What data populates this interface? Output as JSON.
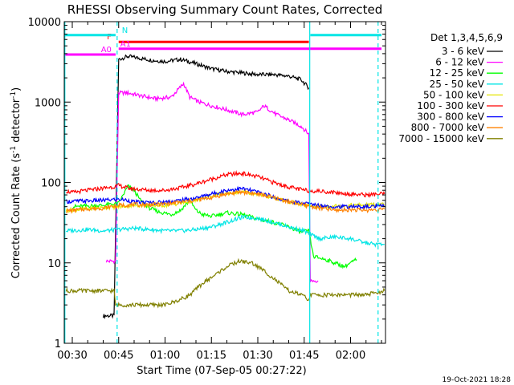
{
  "chart_data": {
    "type": "line",
    "title": "RHESSI Observing Summary Count Rates, Corrected",
    "xlabel": "Start Time (07-Sep-05 00:27:22)",
    "ylabel_main": "Corrected Count Rate (s",
    "ylabel_sup1": "-1",
    "ylabel_mid": " detector",
    "ylabel_sup2": "-1",
    "ylabel_end": ")",
    "yscale": "log",
    "ylim": [
      1,
      10000
    ],
    "xlim_min": [
      27.4,
      131.3
    ],
    "y_ticks": [
      {
        "v": 1,
        "label": "1"
      },
      {
        "v": 10,
        "label": "10"
      },
      {
        "v": 100,
        "label": "100"
      },
      {
        "v": 1000,
        "label": "1000"
      },
      {
        "v": 10000,
        "label": "10000"
      }
    ],
    "x_ticks": [
      {
        "v": 30,
        "label": "00:30"
      },
      {
        "v": 45,
        "label": "00:45"
      },
      {
        "v": 60,
        "label": "01:00"
      },
      {
        "v": 75,
        "label": "01:15"
      },
      {
        "v": 90,
        "label": "01:30"
      },
      {
        "v": 105,
        "label": "01:45"
      },
      {
        "v": 120,
        "label": "02:00"
      }
    ],
    "legend_title": "Det 1,3,4,5,6,9",
    "legend_position": "right",
    "series": [
      {
        "name": "3 - 6 keV",
        "color": "#000000",
        "x": [
          40,
          43.5,
          43.6,
          45,
          48,
          52,
          56,
          60,
          65,
          70,
          75,
          80,
          85,
          90,
          95,
          100,
          104,
          106.5
        ],
        "values": [
          2.2,
          2.2,
          3.5,
          3400,
          3700,
          3500,
          3300,
          3200,
          3400,
          3000,
          2600,
          2400,
          2300,
          2200,
          2200,
          2100,
          1900,
          1500
        ]
      },
      {
        "name": "6 - 12 keV",
        "color": "#ff00ff",
        "x": [
          41,
          43.5,
          44,
          45,
          48,
          52,
          57,
          62,
          66,
          68,
          71,
          75,
          80,
          85,
          90,
          92,
          96,
          100,
          104,
          106.5,
          107,
          109.5
        ],
        "values": [
          10.5,
          10.5,
          10.5,
          1300,
          1300,
          1200,
          1100,
          1150,
          1700,
          1150,
          1000,
          900,
          800,
          700,
          750,
          900,
          700,
          600,
          500,
          400,
          6,
          6
        ]
      },
      {
        "name": "12 - 25 keV",
        "color": "#00ff00",
        "x": [
          30,
          40,
          45,
          48,
          50,
          52,
          55,
          58,
          62,
          65,
          68,
          70,
          72,
          75,
          80,
          85,
          90,
          95,
          100,
          104,
          106.5,
          108,
          112,
          118,
          120,
          122
        ],
        "values": [
          50,
          52,
          55,
          90,
          80,
          60,
          48,
          43,
          40,
          45,
          60,
          45,
          40,
          38,
          42,
          40,
          35,
          32,
          28,
          24,
          25,
          12,
          11,
          9,
          10,
          11
        ]
      },
      {
        "name": "25 - 50 keV",
        "color": "#00e5e5",
        "x": [
          28,
          35,
          40,
          45,
          50,
          55,
          60,
          65,
          70,
          75,
          80,
          85,
          90,
          95,
          100,
          105,
          106.5,
          110,
          115,
          120,
          122,
          124,
          128,
          131
        ],
        "values": [
          25,
          26,
          25,
          26,
          27,
          26,
          25,
          25,
          26,
          28,
          32,
          37,
          36,
          32,
          28,
          25,
          23,
          20,
          21,
          20,
          19,
          18,
          17,
          17
        ]
      },
      {
        "name": "50 - 100 keV",
        "color": "#e5e500",
        "x": [
          28,
          35,
          45,
          50,
          55,
          60,
          65,
          70,
          75,
          80,
          85,
          90,
          95,
          100,
          105,
          110,
          120,
          131
        ],
        "values": [
          45,
          47,
          50,
          52,
          52,
          52,
          55,
          60,
          68,
          74,
          76,
          72,
          65,
          58,
          52,
          50,
          52,
          53
        ]
      },
      {
        "name": "100 - 300 keV",
        "color": "#ff0000",
        "x": [
          28,
          30,
          35,
          40,
          43,
          45,
          48,
          50,
          55,
          60,
          65,
          70,
          75,
          80,
          85,
          90,
          95,
          100,
          105,
          110,
          115,
          120,
          125,
          131
        ],
        "values": [
          78,
          75,
          80,
          85,
          88,
          92,
          85,
          83,
          80,
          80,
          86,
          96,
          110,
          125,
          130,
          118,
          100,
          88,
          80,
          78,
          75,
          72,
          70,
          72
        ]
      },
      {
        "name": "300 - 800 keV",
        "color": "#0000ff",
        "x": [
          28,
          35,
          40,
          45,
          48,
          50,
          55,
          60,
          65,
          70,
          75,
          80,
          85,
          90,
          95,
          100,
          105,
          110,
          115,
          120,
          125,
          131
        ],
        "values": [
          58,
          59,
          60,
          62,
          60,
          57,
          56,
          57,
          60,
          64,
          72,
          80,
          84,
          76,
          66,
          58,
          55,
          52,
          50,
          50,
          50,
          51
        ]
      },
      {
        "name": "800 - 7000 keV",
        "color": "#ff8000",
        "x": [
          28,
          30,
          35,
          40,
          45,
          50,
          55,
          60,
          65,
          70,
          75,
          80,
          85,
          90,
          95,
          100,
          105,
          110,
          115,
          120,
          125,
          131
        ],
        "values": [
          44,
          45,
          47,
          48,
          52,
          53,
          53,
          54,
          57,
          60,
          65,
          72,
          76,
          72,
          65,
          58,
          52,
          48,
          45,
          46,
          45,
          47
        ]
      },
      {
        "name": "7000 - 15000 keV",
        "color": "#808000",
        "x": [
          28,
          40,
          43.5,
          44,
          46,
          50,
          55,
          60,
          65,
          68,
          72,
          76,
          80,
          84,
          88,
          92,
          96,
          100,
          104,
          106.5,
          107,
          110,
          115,
          120,
          125,
          131
        ],
        "values": [
          4.5,
          4.5,
          4.5,
          3,
          3,
          3,
          3,
          3,
          3.5,
          4,
          5.5,
          7,
          9,
          10.5,
          10,
          8,
          6,
          4.5,
          4,
          3.5,
          4,
          4,
          4,
          4,
          4,
          4.5
        ]
      }
    ],
    "state_bars": [
      {
        "label": "F",
        "color": "#ff0000",
        "x_start": 45,
        "x_end": 106.5,
        "y": 5600
      },
      {
        "label": "A0",
        "color": "#ff00ff",
        "x_start": 27.4,
        "x_end": 44,
        "y": 3900
      },
      {
        "label": "A1",
        "color": "#ff00ff",
        "x_start": 45,
        "x_end": 130,
        "y": 4600
      },
      {
        "label": "N",
        "color": "#00e5e5",
        "x_start": 27.4,
        "x_end": 44,
        "y": 6800
      },
      {
        "label": "",
        "color": "#00e5e5",
        "x_start": 107,
        "x_end": 130,
        "y": 6800
      }
    ],
    "vlines_solid": [
      27.6,
      106.8
    ],
    "vlines_dashed": [
      44.5,
      128.9
    ],
    "timestamp": "19-Oct-2021 18:28"
  }
}
